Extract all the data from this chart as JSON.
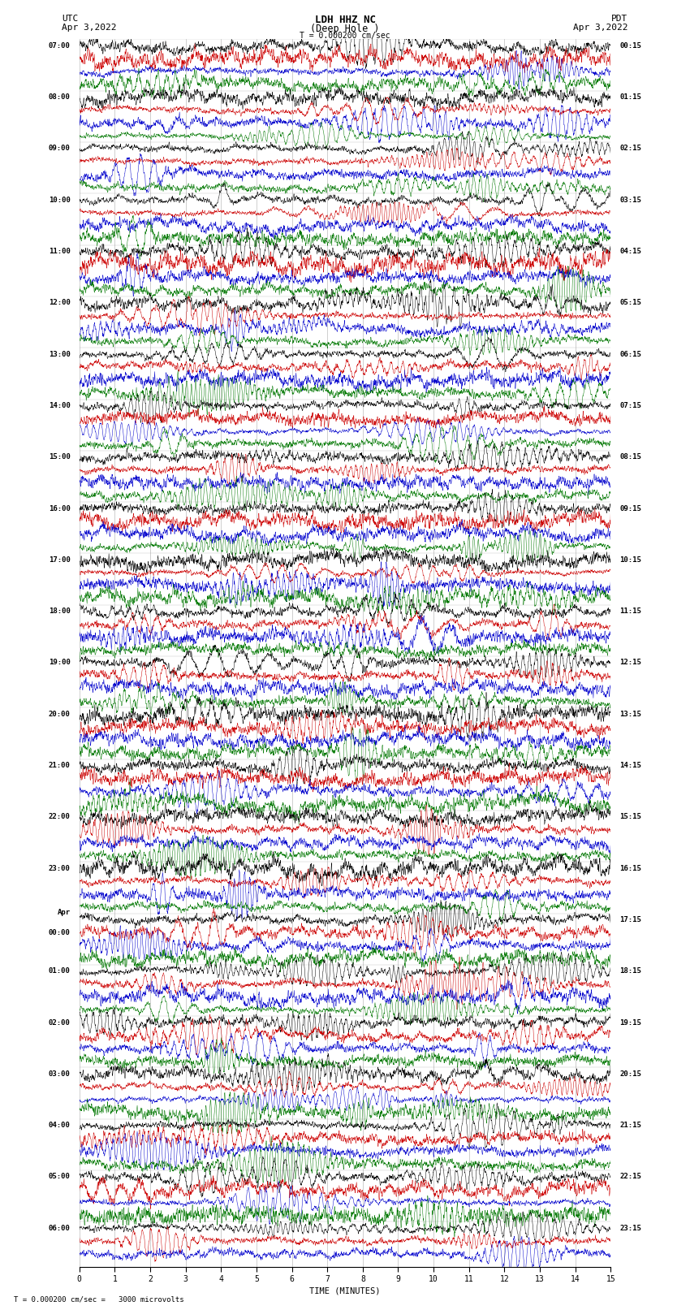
{
  "title_line1": "LDH HHZ NC",
  "title_line2": "(Deep Hole )",
  "scale_bar_text": "T = 0.000200 cm/sec",
  "bottom_note": "T = 0.000200 cm/sec =   3000 microvolts",
  "utc_label": "UTC",
  "utc_date": "Apr 3,2022",
  "pdt_label": "PDT",
  "pdt_date": "Apr 3,2022",
  "xlabel": "TIME (MINUTES)",
  "xlim": [
    0,
    15
  ],
  "xticks": [
    0,
    1,
    2,
    3,
    4,
    5,
    6,
    7,
    8,
    9,
    10,
    11,
    12,
    13,
    14,
    15
  ],
  "trace_colors": [
    "#000000",
    "#cc0000",
    "#0000cc",
    "#007700"
  ],
  "bg_color": "#ffffff",
  "left_times": [
    "07:00",
    "",
    "",
    "",
    "08:00",
    "",
    "",
    "",
    "09:00",
    "",
    "",
    "",
    "10:00",
    "",
    "",
    "",
    "11:00",
    "",
    "",
    "",
    "12:00",
    "",
    "",
    "",
    "13:00",
    "",
    "",
    "",
    "14:00",
    "",
    "",
    "",
    "15:00",
    "",
    "",
    "",
    "16:00",
    "",
    "",
    "",
    "17:00",
    "",
    "",
    "",
    "18:00",
    "",
    "",
    "",
    "19:00",
    "",
    "",
    "",
    "20:00",
    "",
    "",
    "",
    "21:00",
    "",
    "",
    "",
    "22:00",
    "",
    "",
    "",
    "23:00",
    "",
    "",
    "",
    "Apr",
    "00:00",
    "",
    "",
    "01:00",
    "",
    "",
    "",
    "02:00",
    "",
    "",
    "",
    "03:00",
    "",
    "",
    "",
    "04:00",
    "",
    "",
    "",
    "05:00",
    "",
    "",
    "",
    "06:00",
    "",
    ""
  ],
  "right_times": [
    "00:15",
    "",
    "",
    "",
    "01:15",
    "",
    "",
    "",
    "02:15",
    "",
    "",
    "",
    "03:15",
    "",
    "",
    "",
    "04:15",
    "",
    "",
    "",
    "05:15",
    "",
    "",
    "",
    "06:15",
    "",
    "",
    "",
    "07:15",
    "",
    "",
    "",
    "08:15",
    "",
    "",
    "",
    "09:15",
    "",
    "",
    "",
    "10:15",
    "",
    "",
    "",
    "11:15",
    "",
    "",
    "",
    "12:15",
    "",
    "",
    "",
    "13:15",
    "",
    "",
    "",
    "14:15",
    "",
    "",
    "",
    "15:15",
    "",
    "",
    "",
    "16:15",
    "",
    "",
    "",
    "17:15",
    "",
    "",
    "",
    "18:15",
    "",
    "",
    "",
    "19:15",
    "",
    "",
    "",
    "20:15",
    "",
    "",
    "",
    "21:15",
    "",
    "",
    "",
    "22:15",
    "",
    "",
    "",
    "23:15",
    "",
    ""
  ],
  "grid_color": "#aaaaaa",
  "seed": 12345
}
